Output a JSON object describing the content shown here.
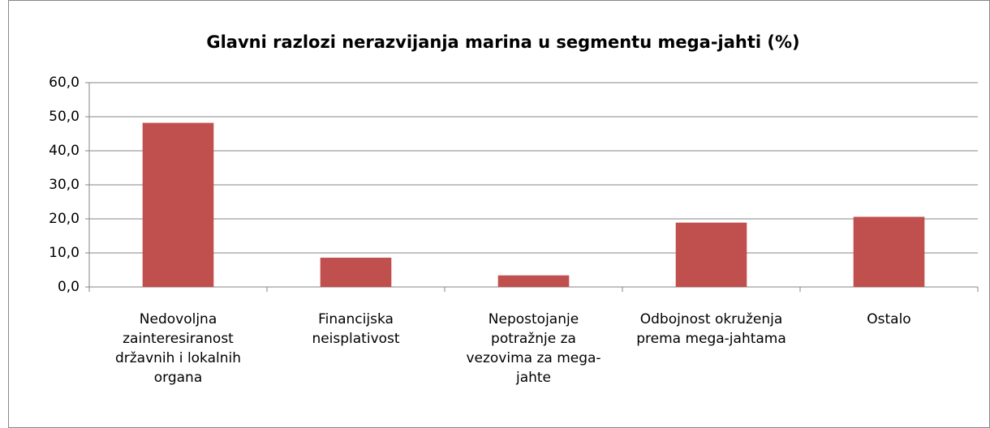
{
  "chart_data": {
    "type": "bar",
    "title": "Glavni razlozi nerazvijanja marina u segmentu mega-jahti (%)",
    "categories": [
      "Nedovoljna zainteresiranost državnih i lokalnih organa",
      "Financijska neisplativost",
      "Nepostojanje potražnje za vezovima za mega-jahte",
      "Odbojnost okruženja prema mega-jahtama",
      "Ostalo"
    ],
    "values": [
      48.2,
      8.6,
      3.4,
      18.9,
      20.6
    ],
    "color": "#c0504d",
    "ylim": [
      0,
      60
    ],
    "yticks": [
      {
        "value": 0,
        "label": "0,0"
      },
      {
        "value": 10,
        "label": "10,0"
      },
      {
        "value": 20,
        "label": "20,0"
      },
      {
        "value": 30,
        "label": "30,0"
      },
      {
        "value": 40,
        "label": "40,0"
      },
      {
        "value": 50,
        "label": "50,0"
      },
      {
        "value": 60,
        "label": "60,0"
      }
    ],
    "grid": true
  }
}
